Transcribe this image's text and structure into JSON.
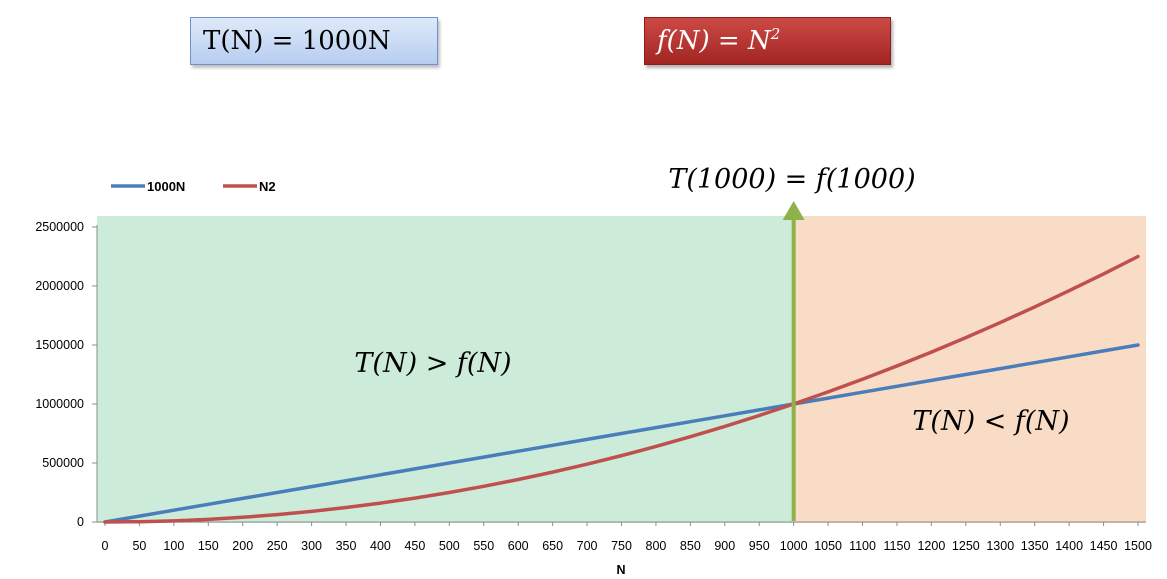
{
  "formulas": {
    "t_def": "T(N) = 1000N",
    "f_def_base": "f(N) = N",
    "f_def_exp": "2"
  },
  "annotations": {
    "intersection": "T(1000) = f(1000)",
    "left_region": "T(N) > f(N)",
    "right_region": "T(N) < f(N)"
  },
  "colors": {
    "series_1000n": "#4a7ebb",
    "series_n2": "#c0504d",
    "left_region": "#cdebd9",
    "right_region": "#f9dcc6",
    "arrow": "#8fb14a"
  },
  "chart_data": {
    "type": "line",
    "title": "",
    "xlabel": "N",
    "ylabel": "",
    "x": [
      0,
      50,
      100,
      150,
      200,
      250,
      300,
      350,
      400,
      450,
      500,
      550,
      600,
      650,
      700,
      750,
      800,
      850,
      900,
      950,
      1000,
      1050,
      1100,
      1150,
      1200,
      1250,
      1300,
      1350,
      1400,
      1450,
      1500
    ],
    "x_tick_labels": [
      "0",
      "50",
      "100",
      "150",
      "200",
      "250",
      "300",
      "350",
      "400",
      "450",
      "500",
      "550",
      "600",
      "650",
      "700",
      "750",
      "800",
      "850",
      "900",
      "950",
      "1000",
      "1050",
      "1100",
      "1150",
      "1200",
      "1250",
      "1300",
      "1350",
      "1400",
      "1450",
      "1500"
    ],
    "y_ticks": [
      0,
      500000,
      1000000,
      1500000,
      2000000,
      2500000
    ],
    "y_tick_labels": [
      "0",
      "500000",
      "1000000",
      "1500000",
      "2000000",
      "2500000"
    ],
    "ylim": [
      0,
      2500000
    ],
    "xlim": [
      0,
      1500
    ],
    "grid": false,
    "legend_position": "top-left",
    "series": [
      {
        "name": "1000N",
        "values": [
          0,
          50000,
          100000,
          150000,
          200000,
          250000,
          300000,
          350000,
          400000,
          450000,
          500000,
          550000,
          600000,
          650000,
          700000,
          750000,
          800000,
          850000,
          900000,
          950000,
          1000000,
          1050000,
          1100000,
          1150000,
          1200000,
          1250000,
          1300000,
          1350000,
          1400000,
          1450000,
          1500000
        ]
      },
      {
        "name": "N2",
        "values": [
          0,
          2500,
          10000,
          22500,
          40000,
          62500,
          90000,
          122500,
          160000,
          202500,
          250000,
          302500,
          360000,
          422500,
          490000,
          562500,
          640000,
          722500,
          810000,
          902500,
          1000000,
          1102500,
          1210000,
          1322500,
          1440000,
          1562500,
          1690000,
          1822500,
          1960000,
          2102500,
          2250000
        ]
      }
    ],
    "crossover_x": 1000
  }
}
